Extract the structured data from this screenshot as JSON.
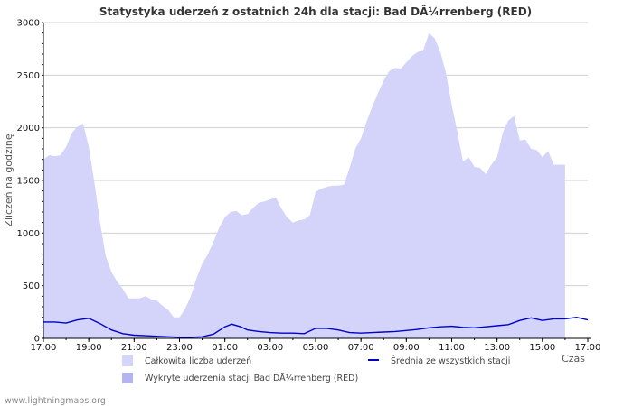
{
  "chart_data": {
    "type": "area",
    "title": "Statystyka uderzeń z ostatnich 24h dla stacji: Bad DÃ¼rrenberg (RED)",
    "xlabel": "Czas",
    "ylabel": "Zliczeń na godzinę",
    "ylim": [
      0,
      3000
    ],
    "yticks": [
      0,
      500,
      1000,
      1500,
      2000,
      2500,
      3000
    ],
    "xlim": [
      0,
      24
    ],
    "xticks": [
      {
        "x": 0,
        "label": "17:00"
      },
      {
        "x": 2,
        "label": "19:00"
      },
      {
        "x": 4,
        "label": "21:00"
      },
      {
        "x": 6,
        "label": "23:00"
      },
      {
        "x": 8,
        "label": "01:00"
      },
      {
        "x": 10,
        "label": "03:00"
      },
      {
        "x": 12,
        "label": "05:00"
      },
      {
        "x": 14,
        "label": "07:00"
      },
      {
        "x": 16,
        "label": "09:00"
      },
      {
        "x": 18,
        "label": "11:00"
      },
      {
        "x": 20,
        "label": "13:00"
      },
      {
        "x": 22,
        "label": "15:00"
      },
      {
        "x": 24,
        "label": "17:00"
      }
    ],
    "grid": true,
    "series": [
      {
        "name": "Całkowita liczba uderzeń",
        "kind": "area",
        "color": "#d4d4fa",
        "points": [
          [
            0,
            1700
          ],
          [
            0.25,
            1740
          ],
          [
            0.5,
            1730
          ],
          [
            0.75,
            1740
          ],
          [
            1.0,
            1820
          ],
          [
            1.25,
            1950
          ],
          [
            1.5,
            2010
          ],
          [
            1.75,
            2040
          ],
          [
            2.0,
            1820
          ],
          [
            2.25,
            1480
          ],
          [
            2.5,
            1100
          ],
          [
            2.75,
            780
          ],
          [
            3.0,
            630
          ],
          [
            3.25,
            540
          ],
          [
            3.5,
            470
          ],
          [
            3.75,
            380
          ],
          [
            4.0,
            380
          ],
          [
            4.25,
            380
          ],
          [
            4.5,
            400
          ],
          [
            4.75,
            370
          ],
          [
            5.0,
            360
          ],
          [
            5.25,
            310
          ],
          [
            5.5,
            270
          ],
          [
            5.75,
            200
          ],
          [
            6.0,
            200
          ],
          [
            6.25,
            280
          ],
          [
            6.5,
            400
          ],
          [
            6.75,
            570
          ],
          [
            7.0,
            710
          ],
          [
            7.25,
            800
          ],
          [
            7.5,
            920
          ],
          [
            7.75,
            1050
          ],
          [
            8.0,
            1150
          ],
          [
            8.25,
            1200
          ],
          [
            8.5,
            1210
          ],
          [
            8.75,
            1170
          ],
          [
            9.0,
            1180
          ],
          [
            9.25,
            1240
          ],
          [
            9.5,
            1290
          ],
          [
            9.75,
            1300
          ],
          [
            10.0,
            1320
          ],
          [
            10.25,
            1340
          ],
          [
            10.5,
            1230
          ],
          [
            10.75,
            1150
          ],
          [
            11.0,
            1100
          ],
          [
            11.25,
            1120
          ],
          [
            11.5,
            1130
          ],
          [
            11.75,
            1170
          ],
          [
            12.0,
            1390
          ],
          [
            12.25,
            1420
          ],
          [
            12.5,
            1440
          ],
          [
            12.75,
            1450
          ],
          [
            13.0,
            1450
          ],
          [
            13.25,
            1460
          ],
          [
            13.5,
            1620
          ],
          [
            13.75,
            1800
          ],
          [
            14.0,
            1900
          ],
          [
            14.25,
            2060
          ],
          [
            14.5,
            2200
          ],
          [
            14.75,
            2330
          ],
          [
            15.0,
            2450
          ],
          [
            15.25,
            2540
          ],
          [
            15.5,
            2570
          ],
          [
            15.75,
            2560
          ],
          [
            16.0,
            2620
          ],
          [
            16.25,
            2680
          ],
          [
            16.5,
            2720
          ],
          [
            16.75,
            2740
          ],
          [
            17.0,
            2900
          ],
          [
            17.25,
            2850
          ],
          [
            17.5,
            2720
          ],
          [
            17.75,
            2520
          ],
          [
            18.0,
            2220
          ],
          [
            18.25,
            1960
          ],
          [
            18.5,
            1680
          ],
          [
            18.75,
            1720
          ],
          [
            19.0,
            1630
          ],
          [
            19.25,
            1620
          ],
          [
            19.5,
            1560
          ],
          [
            19.75,
            1650
          ],
          [
            20.0,
            1720
          ],
          [
            20.25,
            1950
          ],
          [
            20.5,
            2070
          ],
          [
            20.75,
            2110
          ],
          [
            21.0,
            1880
          ],
          [
            21.25,
            1890
          ],
          [
            21.5,
            1800
          ],
          [
            21.75,
            1790
          ],
          [
            22.0,
            1720
          ],
          [
            22.25,
            1780
          ],
          [
            22.5,
            1650
          ],
          [
            22.75,
            1650
          ],
          [
            23.0,
            1650
          ]
        ]
      },
      {
        "name": "Wykryte uderzenia stacji Bad DÃ¼rrenberg (RED)",
        "kind": "area",
        "color": "#b4b4f0",
        "points": [
          [
            0,
            0
          ],
          [
            24,
            0
          ]
        ]
      },
      {
        "name": "Średnia ze wszystkich stacji",
        "kind": "line",
        "color": "#0000c8",
        "points": [
          [
            0,
            155
          ],
          [
            0.5,
            155
          ],
          [
            1.0,
            145
          ],
          [
            1.5,
            175
          ],
          [
            2.0,
            190
          ],
          [
            2.5,
            140
          ],
          [
            3.0,
            80
          ],
          [
            3.5,
            45
          ],
          [
            4.0,
            30
          ],
          [
            4.5,
            25
          ],
          [
            5.0,
            20
          ],
          [
            5.5,
            15
          ],
          [
            6.0,
            10
          ],
          [
            6.5,
            10
          ],
          [
            7.0,
            15
          ],
          [
            7.5,
            40
          ],
          [
            8.0,
            110
          ],
          [
            8.3,
            135
          ],
          [
            8.7,
            110
          ],
          [
            9.0,
            80
          ],
          [
            9.5,
            65
          ],
          [
            10.0,
            55
          ],
          [
            10.5,
            50
          ],
          [
            11.0,
            50
          ],
          [
            11.5,
            45
          ],
          [
            12.0,
            95
          ],
          [
            12.5,
            95
          ],
          [
            13.0,
            80
          ],
          [
            13.5,
            55
          ],
          [
            14.0,
            50
          ],
          [
            14.5,
            55
          ],
          [
            15.0,
            60
          ],
          [
            15.5,
            65
          ],
          [
            16.0,
            75
          ],
          [
            16.5,
            85
          ],
          [
            17.0,
            100
          ],
          [
            17.5,
            110
          ],
          [
            18.0,
            115
          ],
          [
            18.5,
            105
          ],
          [
            19.0,
            100
          ],
          [
            19.5,
            110
          ],
          [
            20.0,
            120
          ],
          [
            20.5,
            130
          ],
          [
            21.0,
            170
          ],
          [
            21.5,
            195
          ],
          [
            22.0,
            170
          ],
          [
            22.5,
            185
          ],
          [
            23.0,
            185
          ],
          [
            23.5,
            200
          ],
          [
            24.0,
            175
          ]
        ]
      }
    ],
    "legend": {
      "placement": "bottom",
      "items": [
        {
          "name": "Całkowita liczba uderzeń",
          "color": "#d4d4fa",
          "kind": "box"
        },
        {
          "name": "Średnia ze wszystkich stacji",
          "color": "#0000c8",
          "kind": "line"
        },
        {
          "name": "Wykryte uderzenia stacji Bad DÃ¼rrenberg (RED)",
          "color": "#b4b4f0",
          "kind": "box"
        }
      ]
    },
    "footer": "www.lightningmaps.org"
  }
}
